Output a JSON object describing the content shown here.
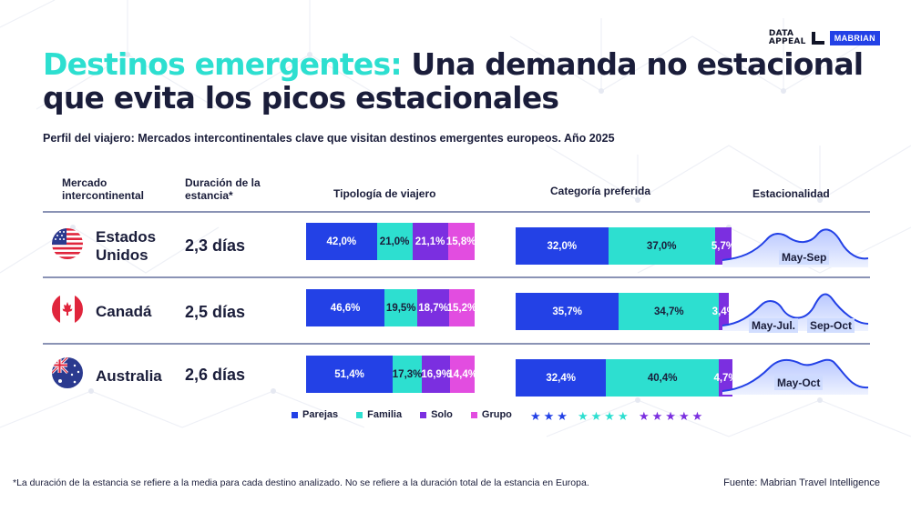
{
  "logos": {
    "brand1": "DATA\nAPPEAL",
    "brand2": "MABRIAN"
  },
  "title": {
    "highlight": "Destinos emergentes:",
    "rest": " Una demanda no estacional que evita los picos estacionales"
  },
  "subtitle": "Perfil del viajero: Mercados intercontinentales clave que visitan destinos emergentes europeos. Año 2025",
  "headers": {
    "market": "Mercado intercontinental",
    "stay": "Duración de la estancia*",
    "typology": "Tipología de viajero",
    "category": "Categoría preferida",
    "seasonality": "Estacionalidad"
  },
  "colors": {
    "parejas": "#2341e6",
    "familia": "#2ddfd0",
    "solo": "#7b2fe0",
    "grupo": "#e24de0",
    "accent": "#2ddfd0",
    "text": "#1a1d3a"
  },
  "rows": [
    {
      "country": "Estados Unidos",
      "flag": "usa-flag-icon",
      "stay": "2,3 días",
      "season_labels": [
        "May-Sep"
      ]
    },
    {
      "country": "Canadá",
      "flag": "canada-flag-icon",
      "stay": "2,5 días",
      "season_labels": [
        "May-Jul.",
        "Sep-Oct"
      ]
    },
    {
      "country": "Australia",
      "flag": "australia-flag-icon",
      "stay": "2,6 días",
      "season_labels": [
        "May-Oct"
      ]
    }
  ],
  "legend": {
    "parejas": "Parejas",
    "familia": "Familia",
    "solo": "Solo",
    "grupo": "Grupo"
  },
  "star_legend": [
    "★★★",
    "★★★★",
    "★★★★★"
  ],
  "chart_data": [
    {
      "type": "bar",
      "stacked": true,
      "orientation": "horizontal",
      "title": "Tipología de viajero",
      "categories": [
        "Estados Unidos",
        "Canadá",
        "Australia"
      ],
      "series": [
        {
          "name": "Parejas",
          "values": [
            42.0,
            46.6,
            51.4
          ],
          "labels": [
            "42,0%",
            "46,6%",
            "51,4%"
          ]
        },
        {
          "name": "Familia",
          "values": [
            21.0,
            19.5,
            17.3
          ],
          "labels": [
            "21,0%",
            "19,5%",
            "17,3%"
          ]
        },
        {
          "name": "Solo",
          "values": [
            21.1,
            18.7,
            16.9
          ],
          "labels": [
            "21,1%",
            "18,7%",
            "16,9%"
          ]
        },
        {
          "name": "Grupo",
          "values": [
            15.8,
            15.2,
            14.4
          ],
          "labels": [
            "15,8%",
            "15,2%",
            "14,4%"
          ]
        }
      ]
    },
    {
      "type": "bar",
      "stacked": true,
      "orientation": "horizontal",
      "title": "Categoría preferida",
      "categories": [
        "Estados Unidos",
        "Canadá",
        "Australia"
      ],
      "series": [
        {
          "name": "★★★",
          "values": [
            32.0,
            35.7,
            32.4
          ],
          "labels": [
            "32,0%",
            "35,7%",
            "32,4%"
          ]
        },
        {
          "name": "★★★★",
          "values": [
            37.0,
            34.7,
            40.4
          ],
          "labels": [
            "37,0%",
            "34,7%",
            "40,4%"
          ]
        },
        {
          "name": "★★★★★",
          "values": [
            5.7,
            3.4,
            4.7
          ],
          "labels": [
            "5,7%",
            "3,4%",
            "4,7%"
          ]
        }
      ]
    }
  ],
  "footnote": "*La duración de la estancia se refiere a la media para cada destino analizado. No se refiere a la duración total de la estancia en Europa.",
  "source": "Fuente: Mabrian Travel Intelligence"
}
